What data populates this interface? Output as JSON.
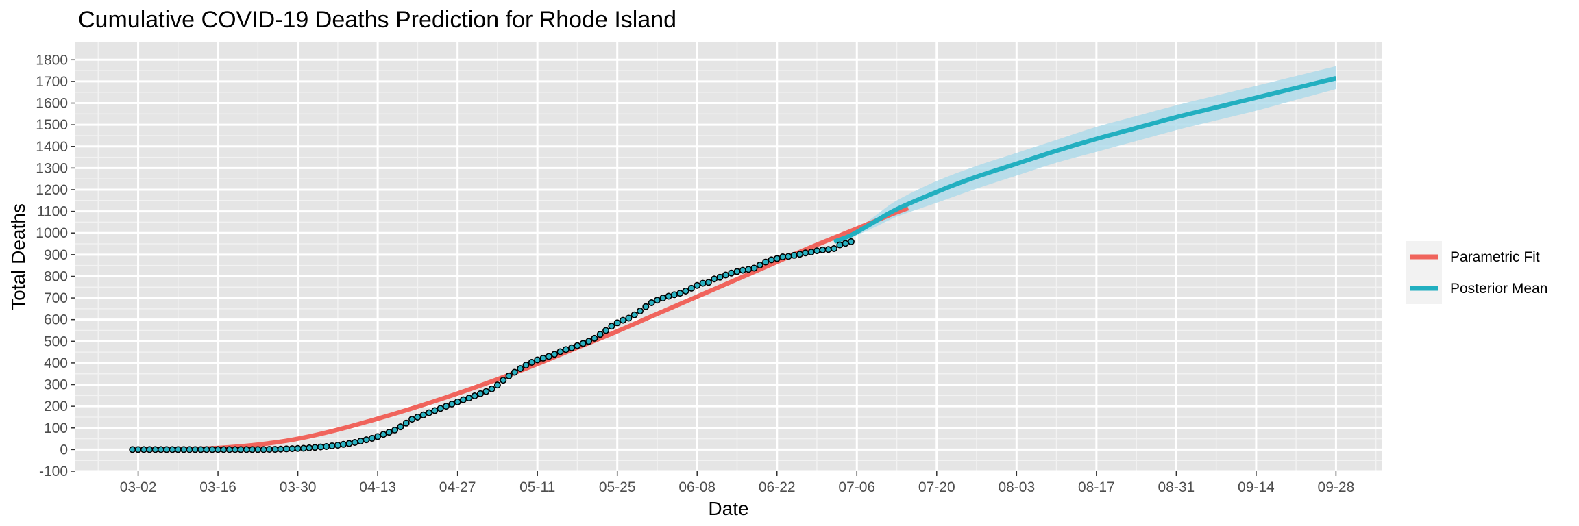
{
  "chart_data": {
    "type": "line",
    "title": "Cumulative COVID-19 Deaths Prediction for Rhode Island",
    "xlabel": "Date",
    "ylabel": "Total Deaths",
    "x_type": "date",
    "xlim": [
      "2020-02-20",
      "2020-10-06"
    ],
    "ylim": [
      -100,
      1880
    ],
    "x_ticks": [
      "2020-03-02",
      "2020-03-16",
      "2020-03-30",
      "2020-04-13",
      "2020-04-27",
      "2020-05-11",
      "2020-05-25",
      "2020-06-08",
      "2020-06-22",
      "2020-07-06",
      "2020-07-20",
      "2020-08-03",
      "2020-08-17",
      "2020-08-31",
      "2020-09-14",
      "2020-09-28"
    ],
    "x_tick_labels": [
      "03-02",
      "03-16",
      "03-30",
      "04-13",
      "04-27",
      "05-11",
      "05-25",
      "06-08",
      "06-22",
      "07-06",
      "07-20",
      "08-03",
      "08-17",
      "08-31",
      "09-14",
      "09-28"
    ],
    "y_ticks": [
      -100,
      0,
      100,
      200,
      300,
      400,
      500,
      600,
      700,
      800,
      900,
      1000,
      1100,
      1200,
      1300,
      1400,
      1500,
      1600,
      1700,
      1800
    ],
    "grid": true,
    "legend_position": "right",
    "colors": {
      "parametric_fit": "#f0645c",
      "posterior_mean": "#22afc0",
      "credible_band": "#a7d8ea",
      "observed_fill": "#2bb2c2",
      "observed_stroke": "#000000",
      "panel_background": "#e5e5e5",
      "grid": "#ffffff"
    },
    "series": [
      {
        "name": "Parametric Fit",
        "kind": "line",
        "points": [
          [
            "2020-03-01",
            0
          ],
          [
            "2020-03-08",
            1
          ],
          [
            "2020-03-15",
            6
          ],
          [
            "2020-03-22",
            20
          ],
          [
            "2020-03-29",
            45
          ],
          [
            "2020-04-05",
            85
          ],
          [
            "2020-04-12",
            135
          ],
          [
            "2020-04-19",
            190
          ],
          [
            "2020-04-26",
            250
          ],
          [
            "2020-05-03",
            315
          ],
          [
            "2020-05-10",
            385
          ],
          [
            "2020-05-17",
            460
          ],
          [
            "2020-05-24",
            535
          ],
          [
            "2020-05-31",
            615
          ],
          [
            "2020-06-07",
            695
          ],
          [
            "2020-06-14",
            775
          ],
          [
            "2020-06-21",
            855
          ],
          [
            "2020-06-28",
            935
          ],
          [
            "2020-07-05",
            1010
          ],
          [
            "2020-07-12",
            1085
          ],
          [
            "2020-07-15",
            1115
          ]
        ]
      },
      {
        "name": "Posterior Mean",
        "kind": "line",
        "points": [
          [
            "2020-07-02",
            960
          ],
          [
            "2020-07-05",
            990
          ],
          [
            "2020-07-09",
            1050
          ],
          [
            "2020-07-13",
            1110
          ],
          [
            "2020-07-20",
            1190
          ],
          [
            "2020-07-27",
            1260
          ],
          [
            "2020-08-03",
            1320
          ],
          [
            "2020-08-10",
            1380
          ],
          [
            "2020-08-17",
            1435
          ],
          [
            "2020-08-24",
            1485
          ],
          [
            "2020-08-31",
            1535
          ],
          [
            "2020-09-07",
            1580
          ],
          [
            "2020-09-14",
            1625
          ],
          [
            "2020-09-21",
            1670
          ],
          [
            "2020-09-28",
            1715
          ]
        ],
        "band": {
          "lower": [
            960,
            980,
            1025,
            1075,
            1140,
            1205,
            1265,
            1325,
            1375,
            1425,
            1475,
            1520,
            1565,
            1615,
            1665
          ],
          "upper": [
            960,
            1000,
            1075,
            1150,
            1240,
            1310,
            1370,
            1430,
            1490,
            1540,
            1590,
            1635,
            1680,
            1725,
            1770
          ]
        }
      }
    ],
    "observed": {
      "start": "2020-03-01",
      "values": [
        0,
        0,
        0,
        0,
        0,
        0,
        0,
        0,
        0,
        0,
        0,
        0,
        0,
        0,
        0,
        0,
        0,
        0,
        0,
        0,
        0,
        0,
        0,
        0,
        1,
        1,
        2,
        3,
        4,
        5,
        6,
        8,
        10,
        12,
        14,
        17,
        20,
        24,
        28,
        33,
        39,
        45,
        52,
        60,
        70,
        80,
        90,
        105,
        122,
        140,
        150,
        160,
        170,
        180,
        190,
        200,
        210,
        220,
        230,
        238,
        248,
        258,
        268,
        280,
        298,
        320,
        340,
        357,
        374,
        390,
        403,
        414,
        422,
        430,
        440,
        452,
        462,
        470,
        480,
        490,
        500,
        514,
        532,
        550,
        570,
        585,
        597,
        607,
        622,
        640,
        660,
        678,
        690,
        700,
        708,
        715,
        722,
        732,
        745,
        758,
        768,
        772,
        788,
        796,
        806,
        815,
        822,
        828,
        832,
        838,
        852,
        866,
        876,
        882,
        890,
        892,
        897,
        902,
        908,
        912,
        918,
        922,
        924,
        928,
        945,
        952,
        960
      ]
    },
    "legend": [
      "Parametric Fit",
      "Posterior Mean"
    ]
  }
}
